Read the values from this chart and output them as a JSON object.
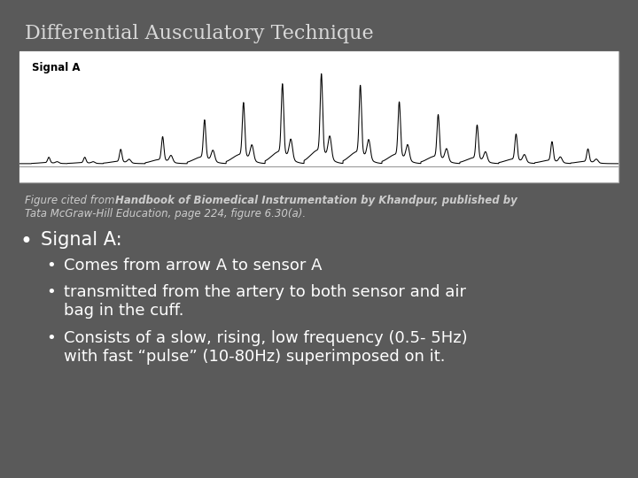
{
  "bg_color": "#5a5a5a",
  "title": "Differential Ausculatory Technique",
  "title_color": "#d8d8d8",
  "title_fontsize": 16,
  "signal_label": "Signal A",
  "bullet_main": "Signal A:",
  "bullet1": "Comes from arrow A to sensor A",
  "bullet2": "transmitted from the artery to both sensor and air\nbag in the cuff.",
  "bullet3": "Consists of a slow, rising, low frequency (0.5- 5Hz)\nwith fast “pulse” (10-80Hz) superimposed on it.",
  "text_color": "#ffffff",
  "caption_color": "#cccccc",
  "image_bg": "#ffffff",
  "image_border": "#aaaaaa",
  "caption_fontsize": 8.5,
  "bullet_main_fontsize": 15,
  "bullet_sub_fontsize": 13
}
